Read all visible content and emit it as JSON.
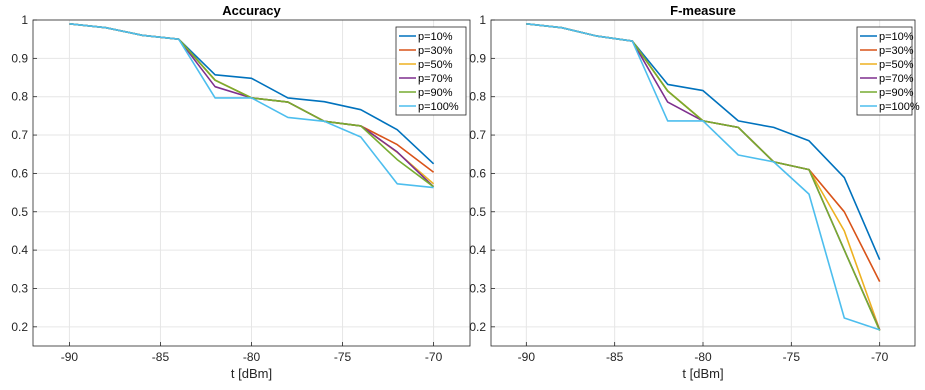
{
  "chart_data": [
    {
      "type": "line",
      "title": "Accuracy",
      "xlabel": "t [dBm]",
      "ylabel": "",
      "xlim": [
        -92,
        -68
      ],
      "ylim": [
        0.15,
        1.0
      ],
      "xticks": [
        -90,
        -85,
        -80,
        -75,
        -70
      ],
      "yticks": [
        0.2,
        0.3,
        0.4,
        0.5,
        0.6,
        0.7,
        0.8,
        0.9,
        1
      ],
      "grid": true,
      "legend": "top-right",
      "series": [
        {
          "name": "p=10%",
          "color": "#0072BD",
          "x": [
            -90,
            -88,
            -86,
            -84,
            -82,
            -80,
            -78,
            -76,
            -74,
            -72,
            -70
          ],
          "y": [
            0.99,
            0.98,
            0.96,
            0.95,
            0.857,
            0.848,
            0.797,
            0.787,
            0.766,
            0.714,
            0.625
          ]
        },
        {
          "name": "p=30%",
          "color": "#D95319",
          "x": [
            -90,
            -88,
            -86,
            -84,
            -82,
            -80,
            -78,
            -76,
            -74,
            -72,
            -70
          ],
          "y": [
            0.99,
            0.98,
            0.96,
            0.95,
            0.843,
            0.797,
            0.786,
            0.736,
            0.724,
            0.675,
            0.603
          ]
        },
        {
          "name": "p=50%",
          "color": "#EDB120",
          "x": [
            -90,
            -88,
            -86,
            -84,
            -82,
            -80,
            -78,
            -76,
            -74,
            -72,
            -70
          ],
          "y": [
            0.99,
            0.98,
            0.96,
            0.95,
            0.843,
            0.797,
            0.786,
            0.736,
            0.724,
            0.655,
            0.573
          ]
        },
        {
          "name": "p=70%",
          "color": "#7E2F8E",
          "x": [
            -90,
            -88,
            -86,
            -84,
            -82,
            -80,
            -78,
            -76,
            -74,
            -72,
            -70
          ],
          "y": [
            0.99,
            0.98,
            0.96,
            0.95,
            0.826,
            0.797,
            0.786,
            0.736,
            0.724,
            0.656,
            0.565
          ]
        },
        {
          "name": "p=90%",
          "color": "#77AC30",
          "x": [
            -90,
            -88,
            -86,
            -84,
            -82,
            -80,
            -78,
            -76,
            -74,
            -72,
            -70
          ],
          "y": [
            0.99,
            0.98,
            0.96,
            0.95,
            0.843,
            0.797,
            0.786,
            0.736,
            0.724,
            0.636,
            0.565
          ]
        },
        {
          "name": "p=100%",
          "color": "#4DBEEE",
          "x": [
            -90,
            -88,
            -86,
            -84,
            -82,
            -80,
            -78,
            -76,
            -74,
            -72,
            -70
          ],
          "y": [
            0.99,
            0.98,
            0.96,
            0.95,
            0.797,
            0.797,
            0.746,
            0.736,
            0.695,
            0.573,
            0.563
          ]
        }
      ]
    },
    {
      "type": "line",
      "title": "F-measure",
      "xlabel": "t [dBm]",
      "ylabel": "",
      "xlim": [
        -92,
        -68
      ],
      "ylim": [
        0.15,
        1.0
      ],
      "xticks": [
        -90,
        -85,
        -80,
        -75,
        -70
      ],
      "yticks": [
        0.2,
        0.3,
        0.4,
        0.5,
        0.6,
        0.7,
        0.8,
        0.9,
        1
      ],
      "grid": true,
      "legend": "top-right",
      "series": [
        {
          "name": "p=10%",
          "color": "#0072BD",
          "x": [
            -90,
            -88,
            -86,
            -84,
            -82,
            -80,
            -78,
            -76,
            -74,
            -72,
            -70
          ],
          "y": [
            0.99,
            0.98,
            0.958,
            0.945,
            0.832,
            0.816,
            0.737,
            0.72,
            0.685,
            0.589,
            0.375
          ]
        },
        {
          "name": "p=30%",
          "color": "#D95319",
          "x": [
            -90,
            -88,
            -86,
            -84,
            -82,
            -80,
            -78,
            -76,
            -74,
            -72,
            -70
          ],
          "y": [
            0.99,
            0.98,
            0.958,
            0.945,
            0.815,
            0.737,
            0.72,
            0.63,
            0.61,
            0.5,
            0.318
          ]
        },
        {
          "name": "p=50%",
          "color": "#EDB120",
          "x": [
            -90,
            -88,
            -86,
            -84,
            -82,
            -80,
            -78,
            -76,
            -74,
            -72,
            -70
          ],
          "y": [
            0.99,
            0.98,
            0.958,
            0.945,
            0.815,
            0.737,
            0.72,
            0.63,
            0.61,
            0.45,
            0.192
          ]
        },
        {
          "name": "p=70%",
          "color": "#7E2F8E",
          "x": [
            -90,
            -88,
            -86,
            -84,
            -82,
            -80,
            -78,
            -76,
            -74,
            -72,
            -70
          ],
          "y": [
            0.99,
            0.98,
            0.958,
            0.945,
            0.786,
            0.737,
            0.72,
            0.63,
            0.61,
            0.4,
            0.192
          ]
        },
        {
          "name": "p=90%",
          "color": "#77AC30",
          "x": [
            -90,
            -88,
            -86,
            -84,
            -82,
            -80,
            -78,
            -76,
            -74,
            -72,
            -70
          ],
          "y": [
            0.99,
            0.98,
            0.958,
            0.945,
            0.815,
            0.737,
            0.72,
            0.63,
            0.61,
            0.4,
            0.19
          ]
        },
        {
          "name": "p=100%",
          "color": "#4DBEEE",
          "x": [
            -90,
            -88,
            -86,
            -84,
            -82,
            -80,
            -78,
            -76,
            -74,
            -72,
            -70
          ],
          "y": [
            0.99,
            0.98,
            0.958,
            0.945,
            0.737,
            0.737,
            0.648,
            0.63,
            0.546,
            0.223,
            0.192
          ]
        }
      ]
    }
  ]
}
